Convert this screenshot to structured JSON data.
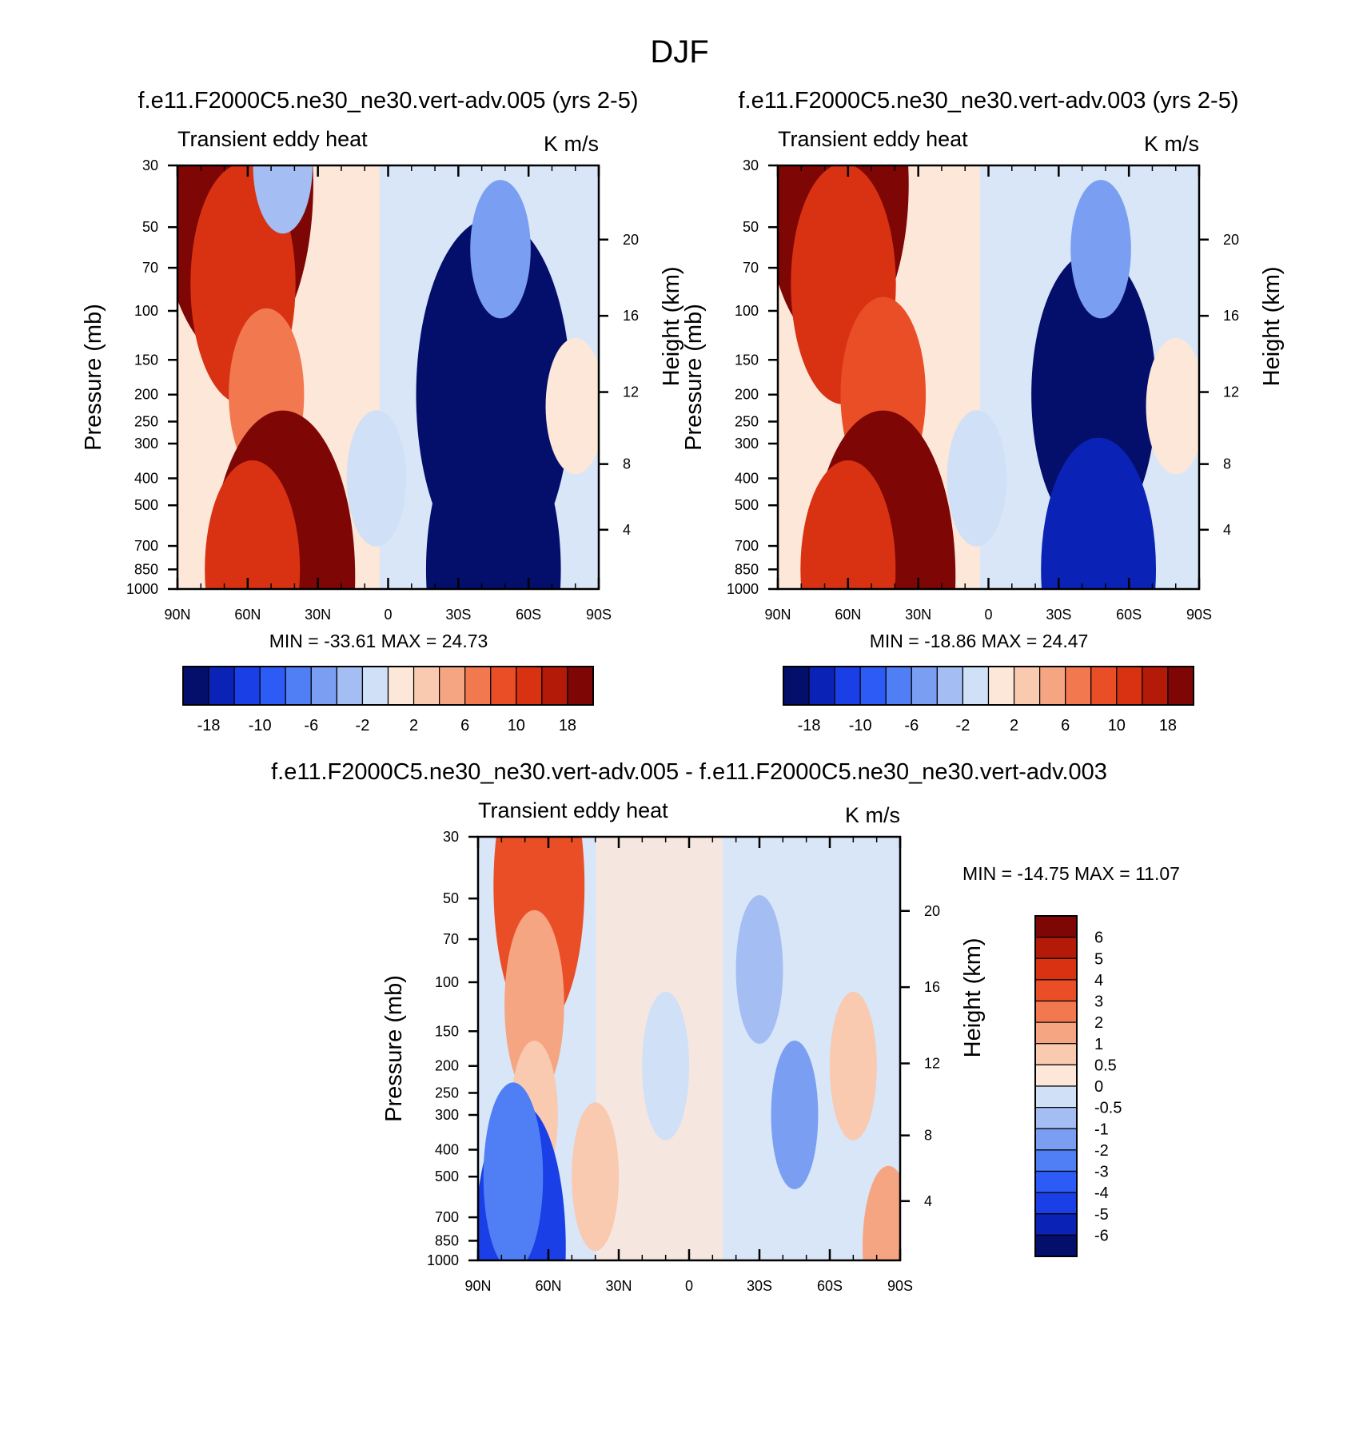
{
  "figure_title": "DJF",
  "colormap": {
    "levels_main": [
      "-18",
      "-10",
      "-6",
      "-2",
      "2",
      "6",
      "10",
      "18"
    ],
    "colors_main": [
      "#040e6b",
      "#0a23b6",
      "#1a3fe6",
      "#2c5cf5",
      "#4f7ef5",
      "#7a9ff2",
      "#a4bdf3",
      "#cfe0f7",
      "#fce7d9",
      "#f9c9b0",
      "#f5a582",
      "#f2784f",
      "#ea4e27",
      "#d83212",
      "#b31a08",
      "#7e0605"
    ],
    "levels_diff": [
      "6",
      "5",
      "4",
      "3",
      "2",
      "1",
      "0.5",
      "0",
      "-0.5",
      "-1",
      "-2",
      "-3",
      "-4",
      "-5",
      "-6"
    ],
    "colors_diff": [
      "#7e0605",
      "#b31a08",
      "#d83212",
      "#ea4e27",
      "#f2784f",
      "#f5a582",
      "#f9c9b0",
      "#fce7d9",
      "#cfe0f7",
      "#a4bdf3",
      "#7a9ff2",
      "#4f7ef5",
      "#2c5cf5",
      "#1a3fe6",
      "#0a23b6",
      "#040e6b"
    ]
  },
  "chart_data": [
    {
      "type": "heatmap",
      "title": "f.e11.F2000C5.ne30_ne30.vert-adv.005 (yrs 2-5)",
      "variable": "Transient eddy heat",
      "units": "K m/s",
      "xlabel": "",
      "ylabel": "Pressure (mb)",
      "ylabel_right": "Height (km)",
      "x_ticks": [
        "90N",
        "60N",
        "30N",
        "0",
        "30S",
        "60S",
        "90S"
      ],
      "y_ticks": [
        "30",
        "50",
        "70",
        "100",
        "150",
        "200",
        "250",
        "300",
        "400",
        "500",
        "700",
        "850",
        "1000"
      ],
      "y_ticks_right": [
        "20",
        "16",
        "12",
        "8",
        "4"
      ],
      "stats": "MIN = -33.61  MAX =  24.73",
      "ylim": [
        1000,
        30
      ],
      "xlim": [
        90,
        -90
      ],
      "y_scale": "log",
      "features": [
        {
          "lat": 65,
          "p": 35,
          "value": 24
        },
        {
          "lat": 62,
          "p": 80,
          "value": 14
        },
        {
          "lat": 52,
          "p": 200,
          "value": 8
        },
        {
          "lat": 45,
          "p": 900,
          "value": 22
        },
        {
          "lat": 58,
          "p": 850,
          "value": 12
        },
        {
          "lat": 45,
          "p": 30,
          "value": -3
        },
        {
          "lat": -45,
          "p": 200,
          "value": -24
        },
        {
          "lat": -45,
          "p": 850,
          "value": -20
        },
        {
          "lat": -48,
          "p": 60,
          "value": -5
        },
        {
          "lat": -80,
          "p": 220,
          "value": 2
        },
        {
          "lat": 5,
          "p": 400,
          "value": -1
        }
      ]
    },
    {
      "type": "heatmap",
      "title": "f.e11.F2000C5.ne30_ne30.vert-adv.003 (yrs 2-5)",
      "variable": "Transient eddy heat",
      "units": "K m/s",
      "xlabel": "",
      "ylabel": "Pressure (mb)",
      "ylabel_right": "Height (km)",
      "x_ticks": [
        "90N",
        "60N",
        "30N",
        "0",
        "30S",
        "60S",
        "90S"
      ],
      "y_ticks": [
        "30",
        "50",
        "70",
        "100",
        "150",
        "200",
        "250",
        "300",
        "400",
        "500",
        "700",
        "850",
        "1000"
      ],
      "y_ticks_right": [
        "20",
        "16",
        "12",
        "8",
        "4"
      ],
      "stats": "MIN = -18.86  MAX =  24.47",
      "ylim": [
        1000,
        30
      ],
      "xlim": [
        90,
        -90
      ],
      "y_scale": "log",
      "features": [
        {
          "lat": 65,
          "p": 35,
          "value": 22
        },
        {
          "lat": 62,
          "p": 80,
          "value": 14
        },
        {
          "lat": 45,
          "p": 200,
          "value": 10
        },
        {
          "lat": 45,
          "p": 900,
          "value": 22
        },
        {
          "lat": 60,
          "p": 850,
          "value": 12
        },
        {
          "lat": -45,
          "p": 200,
          "value": -18
        },
        {
          "lat": -47,
          "p": 850,
          "value": -16
        },
        {
          "lat": -48,
          "p": 60,
          "value": -5
        },
        {
          "lat": -80,
          "p": 220,
          "value": 2
        },
        {
          "lat": 5,
          "p": 400,
          "value": -1
        }
      ]
    },
    {
      "type": "heatmap",
      "title": "f.e11.F2000C5.ne30_ne30.vert-adv.005 - f.e11.F2000C5.ne30_ne30.vert-adv.003",
      "variable": "Transient eddy heat",
      "units": "K m/s",
      "xlabel": "",
      "ylabel": "Pressure (mb)",
      "ylabel_right": "Height (km)",
      "x_ticks": [
        "90N",
        "60N",
        "30N",
        "0",
        "30S",
        "60S",
        "90S"
      ],
      "y_ticks": [
        "30",
        "50",
        "70",
        "100",
        "150",
        "200",
        "250",
        "300",
        "400",
        "500",
        "700",
        "850",
        "1000"
      ],
      "y_ticks_right": [
        "20",
        "16",
        "12",
        "8",
        "4"
      ],
      "stats": "MIN = -14.75  MAX =  11.07",
      "ylim": [
        1000,
        30
      ],
      "xlim": [
        90,
        -90
      ],
      "y_scale": "log",
      "features": [
        {
          "lat": 64,
          "p": 45,
          "value": 4
        },
        {
          "lat": 66,
          "p": 120,
          "value": 2
        },
        {
          "lat": 66,
          "p": 300,
          "value": 1
        },
        {
          "lat": 72,
          "p": 900,
          "value": -4
        },
        {
          "lat": 75,
          "p": 500,
          "value": -2
        },
        {
          "lat": 40,
          "p": 500,
          "value": 0.7
        },
        {
          "lat": 10,
          "p": 200,
          "value": -0.3
        },
        {
          "lat": -30,
          "p": 90,
          "value": -0.6
        },
        {
          "lat": -45,
          "p": 300,
          "value": -1
        },
        {
          "lat": -85,
          "p": 900,
          "value": 1.5
        },
        {
          "lat": -70,
          "p": 200,
          "value": 0.6
        }
      ]
    }
  ]
}
